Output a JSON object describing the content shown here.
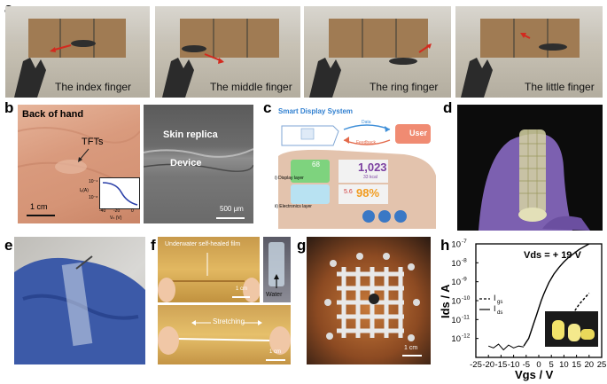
{
  "panel_labels": {
    "a": "a",
    "b": "b",
    "c": "c",
    "d": "d",
    "e": "e",
    "f": "f",
    "g": "g",
    "h": "h"
  },
  "panel_a": {
    "frames": [
      {
        "caption": "The index finger"
      },
      {
        "caption": "The middle finger"
      },
      {
        "caption": "The ring finger"
      },
      {
        "caption": "The little finger"
      }
    ]
  },
  "panel_b": {
    "left_title": "Back of hand",
    "tfts_label": "TFTs",
    "scale_left": "1 cm",
    "right_top": "Skin replica",
    "right_mid": "Device",
    "scale_right": "500 μm",
    "inset": {
      "ylabel": "Iₑ(A)",
      "y_ticks": [
        "10⁻⁴",
        "10⁻⁸"
      ],
      "x_ticks": [
        "-40",
        "-20",
        "0"
      ],
      "xlabel": "Vₙ (V)"
    }
  },
  "panel_c": {
    "title": "Smart  Display System",
    "data": "Data",
    "feedback": "Feedback",
    "user": "User",
    "display_layer": "i) Display layer",
    "electronics_layer": "ii) Electronics layer",
    "big_num": "1,023",
    "kcal": "33 kcal",
    "percent": "98%",
    "hr": "68",
    "small_val": "5.6"
  },
  "panel_f": {
    "top_label": "Underwater self-healed film",
    "water": "Water",
    "scale_top": "1 cm",
    "bottom_label": "Stretching",
    "scale_bottom": "1 cm"
  },
  "panel_g": {
    "scale": "1 cm"
  },
  "panel_h": {
    "annotation": "Vₙₛ = + 19 V",
    "legend_igs": "I",
    "legend_igs_sub": "gs",
    "legend_ids": "I",
    "legend_ids_sub": "ds",
    "ylabel_main": "I",
    "ylabel_sub": "ds",
    "ylabel_unit": "/ A",
    "xlabel_main": "V",
    "xlabel_sub": "gs",
    "xlabel_unit": "/ V"
  },
  "chart_data": {
    "type": "line",
    "title": "",
    "annotation": "Vds = + 19 V",
    "xlabel": "Vgs / V",
    "ylabel": "Ids / A",
    "xlim": [
      -25,
      25
    ],
    "ylim_log10": [
      -13,
      -7
    ],
    "y_scale": "log",
    "x_ticks": [
      -25,
      -20,
      -15,
      -10,
      -5,
      0,
      5,
      10,
      15,
      20,
      25
    ],
    "y_ticks": [
      "10-7",
      "10-8",
      "10-9",
      "10-10",
      "10-11",
      "10-12"
    ],
    "series": [
      {
        "name": "Ids",
        "style": "solid",
        "x": [
          -6,
          -5,
          -4,
          -3,
          -2,
          -1,
          0,
          1,
          2,
          3,
          4,
          6,
          8,
          10,
          12,
          14,
          16,
          18,
          20
        ],
        "y_log10": [
          -12.4,
          -12.2,
          -12.0,
          -11.6,
          -11.2,
          -10.8,
          -10.4,
          -10.0,
          -9.65,
          -9.35,
          -9.05,
          -8.6,
          -8.25,
          -7.95,
          -7.7,
          -7.5,
          -7.3,
          -7.15,
          -7.0
        ]
      },
      {
        "name": "Ids (noise floor)",
        "style": "solid",
        "x": [
          -20,
          -18,
          -16,
          -14,
          -12,
          -10,
          -8,
          -6
        ],
        "y_log10": [
          -12.4,
          -12.5,
          -12.3,
          -12.6,
          -12.35,
          -12.5,
          -12.4,
          -12.45
        ]
      },
      {
        "name": "Igs",
        "style": "dashed",
        "x": [
          8,
          10,
          12,
          14,
          16,
          18,
          20
        ],
        "y_log10": [
          -12.2,
          -11.6,
          -11.1,
          -10.6,
          -10.2,
          -9.9,
          -9.6
        ]
      }
    ],
    "legend": [
      "Igs",
      "Ids"
    ],
    "legend_position": "left"
  }
}
